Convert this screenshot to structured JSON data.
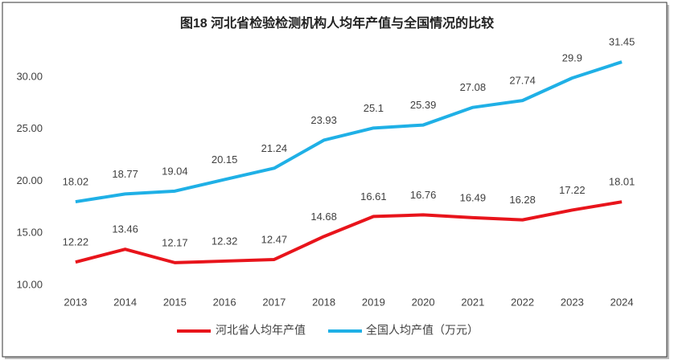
{
  "chart_data": {
    "type": "line",
    "title": "图18  河北省检验检测机构人均年产值与全国情况的比较",
    "categories": [
      "2013",
      "2014",
      "2015",
      "2016",
      "2017",
      "2018",
      "2019",
      "2020",
      "2021",
      "2022",
      "2023",
      "2024"
    ],
    "series": [
      {
        "name": "河北省人均年产值",
        "color": "#e8141b",
        "values": [
          12.22,
          13.46,
          12.17,
          12.32,
          12.47,
          14.68,
          16.61,
          16.76,
          16.49,
          16.28,
          17.22,
          18.01
        ]
      },
      {
        "name": "全国人均产值（万元）",
        "color": "#1fb0e6",
        "values": [
          18.02,
          18.77,
          19.04,
          20.15,
          21.24,
          23.93,
          25.1,
          25.39,
          27.08,
          27.74,
          29.9,
          31.45
        ]
      }
    ],
    "ylim": [
      10,
      34
    ],
    "yticks": [
      {
        "value": 10,
        "label": "10.00"
      },
      {
        "value": 15,
        "label": "15.00"
      },
      {
        "value": 20,
        "label": "20.00"
      },
      {
        "value": 25,
        "label": "25.00"
      },
      {
        "value": 30,
        "label": "30.00"
      }
    ],
    "grid": false,
    "legend": "bottom"
  }
}
